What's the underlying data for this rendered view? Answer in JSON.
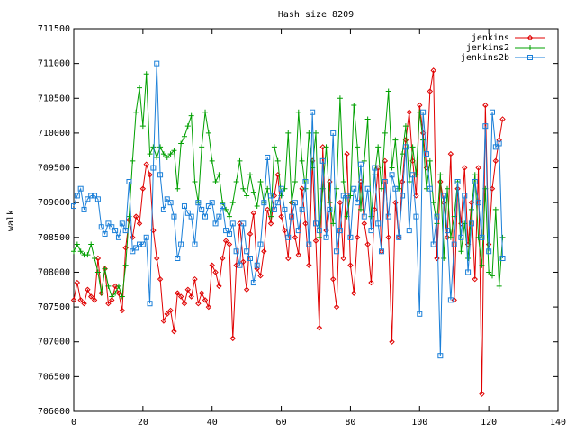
{
  "chart_data": {
    "type": "line",
    "title": "Hash size 8209",
    "y_label": "walk",
    "x": [
      0,
      1,
      2,
      3,
      4,
      5,
      6,
      7,
      8,
      9,
      10,
      11,
      12,
      13,
      14,
      15,
      16,
      17,
      18,
      19,
      20,
      21,
      22,
      23,
      24,
      25,
      26,
      27,
      28,
      29,
      30,
      31,
      32,
      33,
      34,
      35,
      36,
      37,
      38,
      39,
      40,
      41,
      42,
      43,
      44,
      45,
      46,
      47,
      48,
      49,
      50,
      51,
      52,
      53,
      54,
      55,
      56,
      57,
      58,
      59,
      60,
      61,
      62,
      63,
      64,
      65,
      66,
      67,
      68,
      69,
      70,
      71,
      72,
      73,
      74,
      75,
      76,
      77,
      78,
      79,
      80,
      81,
      82,
      83,
      84,
      85,
      86,
      87,
      88,
      89,
      90,
      91,
      92,
      93,
      94,
      95,
      96,
      97,
      98,
      99,
      100,
      101,
      102,
      103,
      104,
      105,
      106,
      107,
      108,
      109,
      110,
      111,
      112,
      113,
      114,
      115,
      116,
      117,
      118,
      119,
      120,
      121,
      122,
      123,
      124
    ],
    "series": [
      {
        "name": "jenkins",
        "color": "#e00000",
        "marker": "diamond",
        "values": [
          707600,
          707850,
          707600,
          707550,
          707750,
          707650,
          707600,
          708200,
          707700,
          708050,
          707550,
          707600,
          707800,
          707700,
          707450,
          708350,
          708750,
          708500,
          708800,
          708700,
          709200,
          709550,
          709400,
          708600,
          708200,
          707900,
          707300,
          707400,
          707450,
          707150,
          707700,
          707650,
          707550,
          707750,
          707650,
          707900,
          707550,
          707700,
          707600,
          707500,
          708100,
          708000,
          707800,
          708200,
          708450,
          708400,
          707050,
          708100,
          708700,
          708150,
          707750,
          708550,
          708850,
          708050,
          707950,
          708300,
          708900,
          708700,
          709100,
          709400,
          708800,
          708600,
          708200,
          709000,
          708500,
          708250,
          709200,
          708700,
          708100,
          709600,
          708450,
          707200,
          709800,
          708600,
          709300,
          707900,
          707500,
          709000,
          708200,
          709700,
          708100,
          707700,
          708500,
          709300,
          708700,
          708400,
          707850,
          708900,
          709500,
          708300,
          709600,
          708500,
          707000,
          709000,
          708500,
          709300,
          709900,
          710300,
          709600,
          709100,
          710400,
          710000,
          709500,
          710600,
          710900,
          708200,
          709300,
          709000,
          708500,
          709700,
          707600,
          709200,
          708700,
          709500,
          708400,
          709000,
          707900,
          709500,
          706250,
          710400,
          708400,
          709200,
          709600,
          709900,
          710200
        ]
      },
      {
        "name": "jenkins2",
        "color": "#00a000",
        "marker": "plus",
        "values": [
          708300,
          708400,
          708300,
          708250,
          708250,
          708400,
          708200,
          708000,
          707700,
          708050,
          707800,
          707650,
          707700,
          707800,
          707650,
          708100,
          708800,
          709600,
          710300,
          710650,
          710100,
          710850,
          709700,
          709800,
          709650,
          709800,
          709700,
          709650,
          709700,
          709750,
          709200,
          709850,
          709950,
          710100,
          710250,
          709300,
          709000,
          709800,
          710300,
          710000,
          709600,
          709300,
          709400,
          709000,
          708900,
          708800,
          709000,
          709300,
          709600,
          709200,
          709100,
          709400,
          709150,
          708950,
          709300,
          709000,
          709200,
          708800,
          709800,
          709600,
          709100,
          709200,
          710000,
          709000,
          709300,
          710300,
          709600,
          709200,
          710000,
          709500,
          710000,
          708500,
          709200,
          709800,
          709000,
          708700,
          709200,
          710500,
          709300,
          708800,
          709100,
          710400,
          709800,
          708900,
          709600,
          710200,
          708800,
          709400,
          709800,
          709200,
          710000,
          710600,
          709500,
          709900,
          709200,
          709700,
          710100,
          709300,
          709800,
          709400,
          710300,
          709900,
          709200,
          709600,
          709000,
          708700,
          709400,
          708200,
          709200,
          708500,
          708800,
          709300,
          708300,
          708700,
          708200,
          708900,
          709400,
          708500,
          708100,
          709200,
          708000,
          707950,
          708900,
          707800,
          708500
        ]
      },
      {
        "name": "jenkins2b",
        "color": "#1a7fd8",
        "marker": "square",
        "values": [
          708950,
          709100,
          709200,
          708900,
          709050,
          709100,
          709100,
          709050,
          708650,
          708550,
          708700,
          708650,
          708600,
          708500,
          708700,
          708600,
          709300,
          708300,
          708350,
          708400,
          708400,
          708500,
          707550,
          709500,
          711000,
          709400,
          708900,
          709050,
          709000,
          708800,
          708200,
          708400,
          708950,
          708850,
          708800,
          708400,
          709000,
          708900,
          708800,
          708950,
          709000,
          708700,
          708800,
          708950,
          708600,
          708550,
          708700,
          708300,
          708100,
          708700,
          708300,
          708200,
          707850,
          708100,
          708400,
          709000,
          709650,
          709100,
          708900,
          709000,
          709200,
          708900,
          708500,
          708800,
          709000,
          708600,
          708900,
          709300,
          708400,
          710300,
          708700,
          708600,
          709600,
          708500,
          708900,
          710000,
          708300,
          708600,
          709100,
          709100,
          708500,
          709200,
          709000,
          709550,
          708800,
          709200,
          708600,
          709500,
          708700,
          708300,
          709300,
          708800,
          709400,
          709200,
          708500,
          709100,
          709800,
          708600,
          709400,
          708800,
          707400,
          710300,
          709700,
          709200,
          708400,
          708800,
          706800,
          709100,
          708600,
          707600,
          708400,
          709300,
          708500,
          709100,
          708000,
          708700,
          709300,
          709000,
          708500,
          710100,
          708300,
          710300,
          709800,
          709850,
          708200
        ]
      }
    ],
    "xlim": [
      0,
      140
    ],
    "xticks": [
      0,
      20,
      40,
      60,
      80,
      100,
      120,
      140
    ],
    "ylim": [
      706000,
      711500
    ],
    "yticks": [
      706000,
      706500,
      707000,
      707500,
      708000,
      708500,
      709000,
      709500,
      710000,
      710500,
      711000,
      711500
    ],
    "legend": "top right"
  }
}
